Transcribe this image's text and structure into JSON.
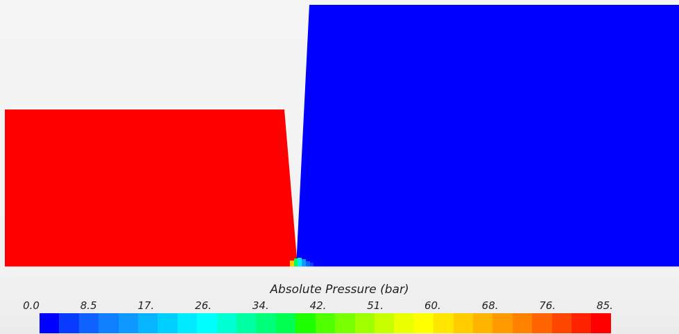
{
  "legend": {
    "title": "Absolute Pressure (bar)",
    "ticks": [
      "0.0",
      "8.5",
      "17.",
      "26.",
      "34.",
      "42.",
      "51.",
      "60.",
      "68.",
      "76.",
      "85."
    ],
    "range": [
      0,
      85
    ],
    "colors": [
      "#0000ff",
      "#0a3cff",
      "#0f62ff",
      "#0f7fff",
      "#0f98ff",
      "#08b4ff",
      "#00cfff",
      "#00ebff",
      "#00ffff",
      "#00ffd2",
      "#00ffa0",
      "#00ff78",
      "#00ff50",
      "#1eff00",
      "#50ff00",
      "#78ff00",
      "#a0ff00",
      "#c8ff00",
      "#eaff00",
      "#ffff00",
      "#ffe600",
      "#ffcc00",
      "#ffb400",
      "#ff9b00",
      "#ff8200",
      "#ff6400",
      "#ff4600",
      "#ff2300",
      "#ff0000"
    ]
  },
  "regions": {
    "high_pressure_color": "#ff0000",
    "low_pressure_color": "#0000ff",
    "background_color": "#f3f3f3"
  }
}
